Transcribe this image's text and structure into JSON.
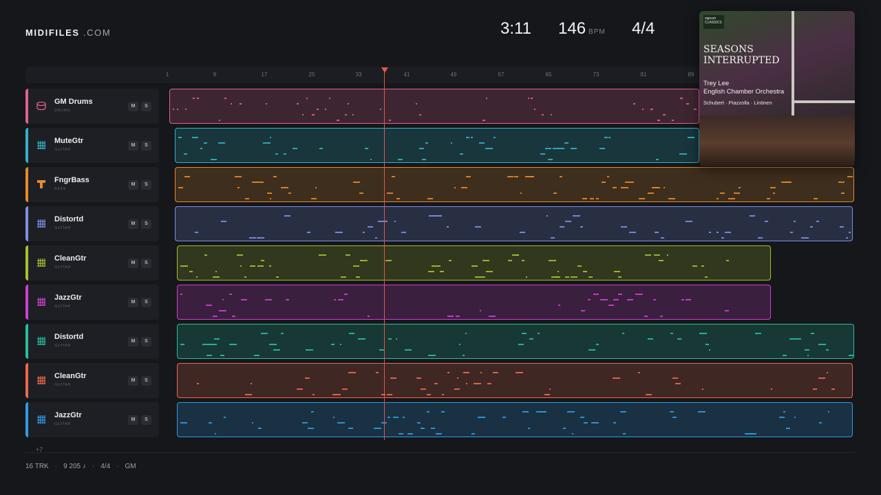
{
  "brand": {
    "name": "MIDIFILES",
    "domain": ".COM"
  },
  "transport": {
    "time": "3:11",
    "tempo": "146",
    "tempo_unit": "BPM",
    "signature": "4/4"
  },
  "ruler": {
    "bars": [
      "1",
      "9",
      "17",
      "25",
      "33",
      "41",
      "49",
      "57",
      "65",
      "73",
      "81",
      "89"
    ]
  },
  "tracks": [
    {
      "name": "GM Drums",
      "category": "DRUMS",
      "color": "#e0628f",
      "icon": "drum-icon"
    },
    {
      "name": "MuteGtr",
      "category": "GUITAR",
      "color": "#2fb3c8",
      "icon": "guitar-grid-icon"
    },
    {
      "name": "FngrBass",
      "category": "BASS",
      "color": "#e78a2a",
      "icon": "bass-icon"
    },
    {
      "name": "Distortd",
      "category": "GUITAR",
      "color": "#7e8fe6",
      "icon": "guitar-grid-icon"
    },
    {
      "name": "CleanGtr",
      "category": "GUITAR",
      "color": "#a6c02f",
      "icon": "guitar-grid-icon"
    },
    {
      "name": "JazzGtr",
      "category": "GUITAR",
      "color": "#d23fd0",
      "icon": "guitar-grid-icon"
    },
    {
      "name": "Distortd",
      "category": "GUITAR",
      "color": "#26bf9f",
      "icon": "guitar-grid-icon"
    },
    {
      "name": "CleanGtr",
      "category": "GUITAR",
      "color": "#ec6a4c",
      "icon": "guitar-grid-icon"
    },
    {
      "name": "JazzGtr",
      "category": "GUITAR",
      "color": "#2e9ce6",
      "icon": "guitar-grid-icon"
    }
  ],
  "mute_label": "M",
  "solo_label": "S",
  "more_tracks": "+7",
  "footer": {
    "tracks": "16 TRK",
    "notes": "9 205 ♪",
    "signature": "4/4",
    "standard": "GM"
  },
  "cover": {
    "label": "signum CLASSICS",
    "title_line1": "SEASONS",
    "title_line2": "INTERRUPTED",
    "artist_line1": "Trey Lee",
    "artist_line2": "English Chamber Orchestra",
    "composers": "Schubert · Piazzolla · Lintinen"
  }
}
